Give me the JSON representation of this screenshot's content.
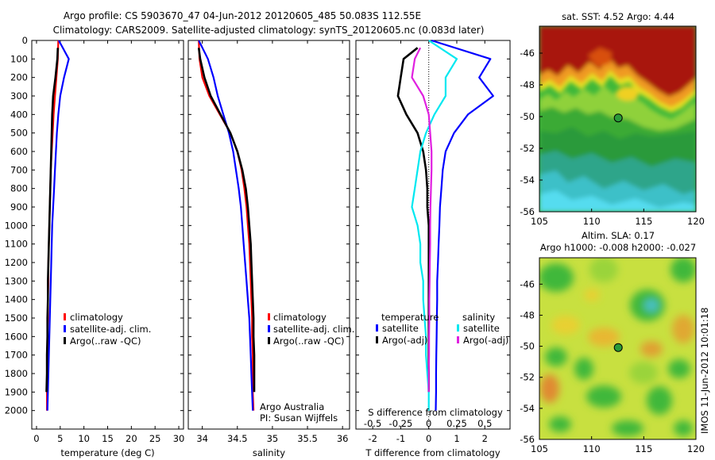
{
  "header": {
    "title_line1": "Argo profile: CS 5903670_47 04-Jun-2012 20120605_485 50.083S 112.55E",
    "title_line2": "Climatology: CARS2009. Satellite-adjusted climatology: synTS_20120605.nc (0.083d later)"
  },
  "stamp": "IMOS 11-Jun-2012 10:01:18",
  "colors": {
    "climatology": "#ff0000",
    "satellite": "#0000ff",
    "argo": "#000000",
    "satellite_salinity": "#00e8f0",
    "argo_salinity": "#e020e0"
  },
  "chart_data": [
    {
      "type": "line",
      "panel": "temperature",
      "xlabel": "temperature (deg C)",
      "ylim": [
        2100,
        0
      ],
      "xlim": [
        -1,
        31
      ],
      "xticks": [
        0,
        5,
        10,
        15,
        20,
        25,
        30
      ],
      "yticks": [
        0,
        100,
        200,
        300,
        400,
        500,
        600,
        700,
        800,
        900,
        1000,
        1100,
        1200,
        1300,
        1400,
        1500,
        1600,
        1700,
        1800,
        1900,
        2000
      ],
      "legend_position": "center",
      "series": [
        {
          "name": "climatology",
          "color": "#ff0000",
          "x": [
            4.6,
            4.5,
            4.2,
            3.9,
            3.6,
            3.4,
            3.2,
            3.0,
            2.9,
            2.8,
            2.7,
            2.6,
            2.5,
            2.5,
            2.4,
            2.4,
            2.3,
            2.3,
            2.2,
            2.2,
            2.2
          ],
          "y": [
            0,
            100,
            200,
            300,
            400,
            500,
            600,
            700,
            800,
            900,
            1000,
            1100,
            1200,
            1300,
            1400,
            1500,
            1600,
            1700,
            1800,
            1900,
            2000
          ]
        },
        {
          "name": "satellite-adj. clim.",
          "color": "#0000ff",
          "x": [
            4.7,
            6.8,
            5.8,
            5.0,
            4.6,
            4.3,
            4.1,
            3.9,
            3.7,
            3.5,
            3.3,
            3.2,
            3.1,
            3.0,
            2.9,
            2.8,
            2.7,
            2.6,
            2.5,
            2.4,
            2.3
          ],
          "y": [
            0,
            100,
            200,
            300,
            400,
            500,
            600,
            700,
            800,
            900,
            1000,
            1100,
            1200,
            1300,
            1400,
            1500,
            1600,
            1700,
            1800,
            1900,
            2000
          ]
        },
        {
          "name": "Argo(..raw -QC)",
          "color": "#000000",
          "x": [
            4.5,
            4.4,
            4.0,
            3.5,
            3.3,
            3.2,
            3.1,
            3.0,
            2.9,
            2.8,
            2.7,
            2.6,
            2.5,
            2.4,
            2.4,
            2.3,
            2.3,
            2.2,
            2.2,
            2.1
          ],
          "y": [
            40,
            100,
            200,
            300,
            400,
            500,
            600,
            700,
            800,
            900,
            1000,
            1100,
            1200,
            1300,
            1400,
            1500,
            1600,
            1700,
            1800,
            1900
          ]
        }
      ]
    },
    {
      "type": "line",
      "panel": "salinity",
      "xlabel": "salinity",
      "ylim": [
        2100,
        0
      ],
      "xlim": [
        33.8,
        36.1
      ],
      "xticks": [
        34,
        34.5,
        35,
        35.5,
        36
      ],
      "legend_position": "center-right",
      "annotation_line1": "Argo Australia",
      "annotation_line2": "PI: Susan Wijffels",
      "series": [
        {
          "name": "climatology",
          "color": "#ff0000",
          "x": [
            33.95,
            33.96,
            34.0,
            34.1,
            34.25,
            34.4,
            34.5,
            34.56,
            34.6,
            34.63,
            34.65,
            34.67,
            34.68,
            34.69,
            34.7,
            34.71,
            34.71,
            34.72,
            34.72,
            34.72,
            34.73
          ],
          "y": [
            0,
            100,
            200,
            300,
            400,
            500,
            600,
            700,
            800,
            900,
            1000,
            1100,
            1200,
            1300,
            1400,
            1500,
            1600,
            1700,
            1800,
            1900,
            2000
          ]
        },
        {
          "name": "satellite-adj. clim.",
          "color": "#0000ff",
          "x": [
            33.95,
            34.08,
            34.16,
            34.22,
            34.3,
            34.38,
            34.44,
            34.48,
            34.52,
            34.55,
            34.57,
            34.59,
            34.61,
            34.63,
            34.65,
            34.67,
            34.68,
            34.69,
            34.7,
            34.71,
            34.72
          ],
          "y": [
            0,
            100,
            200,
            300,
            400,
            500,
            600,
            700,
            800,
            900,
            1000,
            1100,
            1200,
            1300,
            1400,
            1500,
            1600,
            1700,
            1800,
            1900,
            2000
          ]
        },
        {
          "name": "Argo(..raw -QC)",
          "color": "#000000",
          "x": [
            33.95,
            33.97,
            34.03,
            34.12,
            34.26,
            34.4,
            34.5,
            34.57,
            34.62,
            34.65,
            34.67,
            34.69,
            34.7,
            34.71,
            34.72,
            34.73,
            34.73,
            34.74,
            34.74,
            34.74
          ],
          "y": [
            40,
            100,
            200,
            300,
            400,
            500,
            600,
            700,
            800,
            900,
            1000,
            1100,
            1200,
            1300,
            1400,
            1500,
            1600,
            1700,
            1800,
            1900
          ]
        }
      ]
    },
    {
      "type": "line",
      "panel": "differences",
      "xlabel": "T difference from climatology",
      "xlabel_top": "S difference from climatology",
      "ylim": [
        2100,
        0
      ],
      "xlim": [
        -2.6,
        2.9
      ],
      "xticks": [
        -2,
        -1,
        0,
        1,
        2
      ],
      "xticks_salinity_labels": [
        "-0.5",
        "-0.25",
        "0",
        "0.25",
        "0.5"
      ],
      "xticks_salinity_at": [
        -2,
        -1,
        0,
        1,
        2
      ],
      "legend_position": "center",
      "legend_group1": "temperature",
      "legend_group2": "salinity",
      "series": [
        {
          "name": "satellite",
          "group": "temperature",
          "color": "#0000ff",
          "x": [
            0.1,
            2.2,
            1.8,
            2.3,
            1.4,
            0.9,
            0.6,
            0.5,
            0.45,
            0.4,
            0.38,
            0.35,
            0.33,
            0.3,
            0.3,
            0.29,
            0.28,
            0.27,
            0.26,
            0.26,
            0.25
          ],
          "y": [
            0,
            100,
            200,
            300,
            400,
            500,
            600,
            700,
            800,
            900,
            1000,
            1100,
            1200,
            1300,
            1400,
            1500,
            1600,
            1700,
            1800,
            1900,
            2000
          ]
        },
        {
          "name": "Argo(-adj)",
          "group": "temperature",
          "color": "#000000",
          "x": [
            -0.4,
            -0.9,
            -1.0,
            -1.1,
            -0.8,
            -0.4,
            -0.2,
            -0.1,
            -0.05,
            -0.05,
            0.0,
            0.0,
            0.0,
            0.0,
            0.0,
            0.0,
            0.0,
            0.0,
            0.0,
            0.0
          ],
          "y": [
            40,
            100,
            200,
            300,
            400,
            500,
            600,
            700,
            800,
            900,
            1000,
            1100,
            1200,
            1300,
            1400,
            1500,
            1600,
            1700,
            1800,
            1900
          ]
        },
        {
          "name": "satellite",
          "group": "salinity",
          "color": "#00e8f0",
          "x": [
            0.0,
            1.0,
            0.6,
            0.6,
            0.2,
            -0.1,
            -0.3,
            -0.4,
            -0.5,
            -0.6,
            -0.4,
            -0.3,
            -0.3,
            -0.2,
            -0.2,
            -0.15,
            -0.1,
            -0.1,
            -0.05,
            0.0,
            0.0
          ],
          "y": [
            0,
            100,
            200,
            300,
            400,
            500,
            600,
            700,
            800,
            900,
            1000,
            1100,
            1200,
            1300,
            1400,
            1500,
            1600,
            1700,
            1800,
            1900,
            2000
          ]
        },
        {
          "name": "Argo(-adj)",
          "group": "salinity",
          "color": "#e020e0",
          "x": [
            -0.3,
            -0.5,
            -0.6,
            -0.2,
            0.0,
            0.05,
            0.1,
            0.1,
            0.08,
            0.06,
            0.05,
            0.05,
            0.04,
            0.03,
            0.02,
            0.02,
            0.01,
            0.01,
            0.0,
            0.0
          ],
          "y": [
            40,
            100,
            200,
            300,
            400,
            500,
            600,
            700,
            800,
            900,
            1000,
            1100,
            1200,
            1300,
            1400,
            1500,
            1600,
            1700,
            1800,
            1900
          ]
        }
      ]
    },
    {
      "type": "heatmap",
      "panel": "sst-map",
      "title": "sat. SST: 4.52  Argo: 4.44",
      "xlim": [
        105,
        120
      ],
      "ylim": [
        -56,
        -44.3
      ],
      "xticks": [
        105,
        110,
        115,
        120
      ],
      "yticks": [
        -46,
        -48,
        -50,
        -52,
        -54,
        -56
      ],
      "marker": {
        "lon": 112.55,
        "lat": -50.083
      }
    },
    {
      "type": "heatmap",
      "panel": "sla-map",
      "title_line1": "Altim. SLA: 0.17",
      "title_line2": "Argo h1000: -0.008 h2000: -0.027",
      "xlim": [
        105,
        120
      ],
      "ylim": [
        -56,
        -44.3
      ],
      "xticks": [
        105,
        110,
        115,
        120
      ],
      "yticks": [
        -46,
        -48,
        -50,
        -52,
        -54,
        -56
      ],
      "marker": {
        "lon": 112.55,
        "lat": -50.083
      }
    }
  ]
}
